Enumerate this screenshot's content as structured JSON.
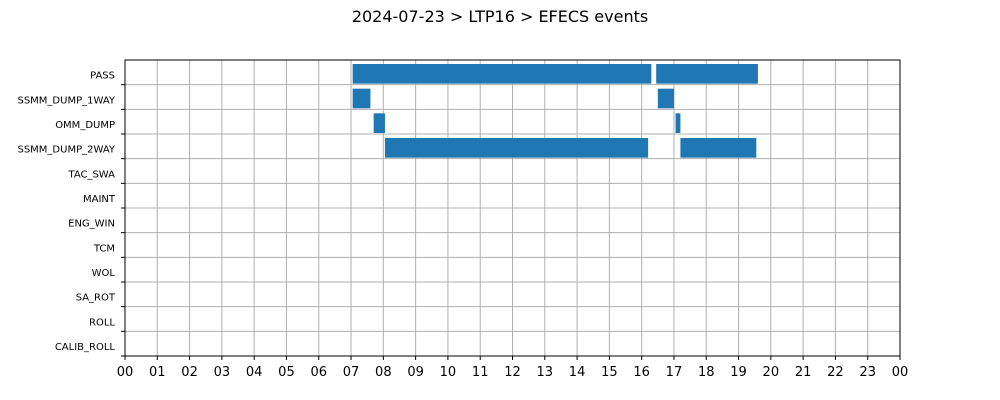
{
  "chart_data": {
    "type": "bar",
    "orientation": "horizontal-timeline",
    "title": "2024-07-23 > LTP16 > EFECS events",
    "xlabel": "",
    "ylabel": "",
    "xlim": [
      0,
      24
    ],
    "x_tick_labels": [
      "00",
      "01",
      "02",
      "03",
      "04",
      "05",
      "06",
      "07",
      "08",
      "09",
      "10",
      "11",
      "12",
      "13",
      "14",
      "15",
      "16",
      "17",
      "18",
      "19",
      "20",
      "21",
      "22",
      "23",
      "00"
    ],
    "categories": [
      "PASS",
      "SSMM_DUMP_1WAY",
      "OMM_DUMP",
      "SSMM_DUMP_2WAY",
      "TAC_SWA",
      "MAINT",
      "ENG_WIN",
      "TCM",
      "WOL",
      "SA_ROT",
      "ROLL",
      "CALIB_ROLL"
    ],
    "grid": true,
    "bar_color": "#1f77b4",
    "events": [
      {
        "category": "PASS",
        "start": 7.05,
        "end": 16.3
      },
      {
        "category": "PASS",
        "start": 16.45,
        "end": 19.6
      },
      {
        "category": "SSMM_DUMP_1WAY",
        "start": 7.05,
        "end": 7.6
      },
      {
        "category": "SSMM_DUMP_1WAY",
        "start": 16.5,
        "end": 17.0
      },
      {
        "category": "OMM_DUMP",
        "start": 7.7,
        "end": 8.05
      },
      {
        "category": "OMM_DUMP",
        "start": 17.05,
        "end": 17.2
      },
      {
        "category": "SSMM_DUMP_2WAY",
        "start": 8.05,
        "end": 16.2
      },
      {
        "category": "SSMM_DUMP_2WAY",
        "start": 17.2,
        "end": 19.55
      }
    ]
  }
}
